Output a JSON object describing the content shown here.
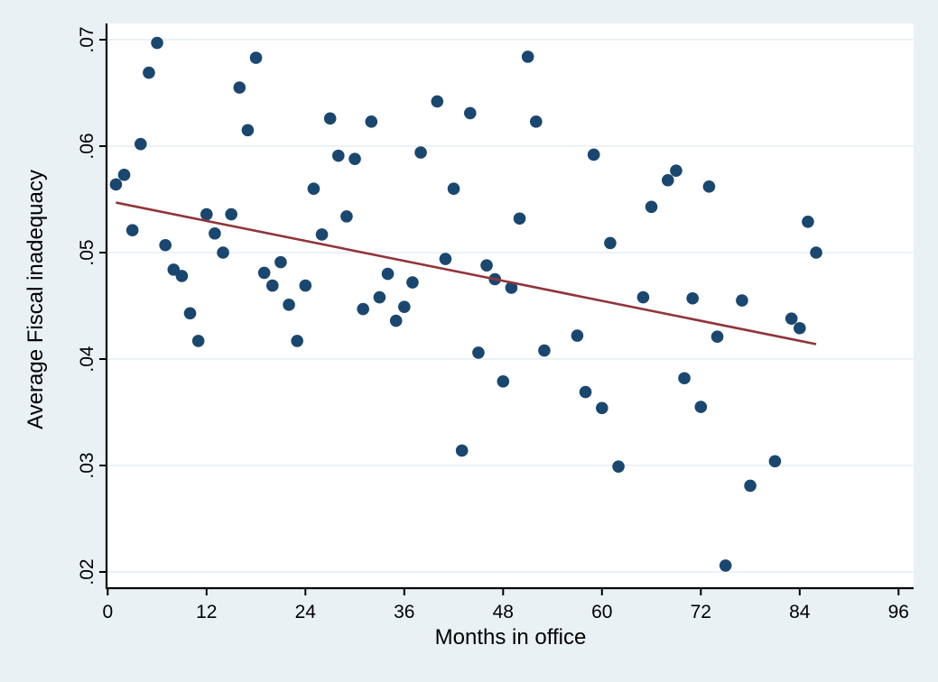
{
  "chart_data": {
    "type": "scatter",
    "title": "",
    "xlabel": "Months in office",
    "ylabel": "Average Fiscal inadequacy",
    "x_ticks": [
      0,
      12,
      24,
      36,
      48,
      60,
      72,
      84,
      96
    ],
    "y_tick_values": [
      0.02,
      0.03,
      0.04,
      0.05,
      0.06,
      0.07
    ],
    "y_tick_labels": [
      ".02",
      ".03",
      ".04",
      ".05",
      ".06",
      ".07"
    ],
    "xlim": [
      0,
      97.8
    ],
    "ylim": [
      0.0185,
      0.0709
    ],
    "grid": "horizontal",
    "legend": "none",
    "marker_color": "#1a476f",
    "trend_line": {
      "type": "linear-fit",
      "color": "#90353b",
      "x_start": 1,
      "y_start": 0.0547,
      "x_end": 86,
      "y_end": 0.0414
    },
    "points": [
      [
        1,
        0.0564
      ],
      [
        2,
        0.0573
      ],
      [
        3,
        0.0521
      ],
      [
        4,
        0.0602
      ],
      [
        5,
        0.0669
      ],
      [
        6,
        0.0697
      ],
      [
        7,
        0.0507
      ],
      [
        8,
        0.0484
      ],
      [
        9,
        0.0478
      ],
      [
        10,
        0.0443
      ],
      [
        11,
        0.0417
      ],
      [
        12,
        0.0536
      ],
      [
        13,
        0.0518
      ],
      [
        14,
        0.05
      ],
      [
        15,
        0.0536
      ],
      [
        16,
        0.0655
      ],
      [
        17,
        0.0615
      ],
      [
        18,
        0.0683
      ],
      [
        19,
        0.0481
      ],
      [
        20,
        0.0469
      ],
      [
        21,
        0.0491
      ],
      [
        22,
        0.0451
      ],
      [
        23,
        0.0417
      ],
      [
        24,
        0.0469
      ],
      [
        25,
        0.056
      ],
      [
        26,
        0.0517
      ],
      [
        27,
        0.0626
      ],
      [
        28,
        0.0591
      ],
      [
        29,
        0.0534
      ],
      [
        30,
        0.0588
      ],
      [
        31,
        0.0447
      ],
      [
        32,
        0.0623
      ],
      [
        33,
        0.0458
      ],
      [
        34,
        0.048
      ],
      [
        35,
        0.0436
      ],
      [
        36,
        0.0449
      ],
      [
        37,
        0.0472
      ],
      [
        38,
        0.0594
      ],
      [
        40,
        0.0642
      ],
      [
        41,
        0.0494
      ],
      [
        42,
        0.056
      ],
      [
        43,
        0.0314
      ],
      [
        44,
        0.0631
      ],
      [
        45,
        0.0406
      ],
      [
        46,
        0.0488
      ],
      [
        47,
        0.0475
      ],
      [
        48,
        0.0379
      ],
      [
        49,
        0.0467
      ],
      [
        50,
        0.0532
      ],
      [
        51,
        0.0684
      ],
      [
        52,
        0.0623
      ],
      [
        53,
        0.0408
      ],
      [
        57,
        0.0422
      ],
      [
        58,
        0.0369
      ],
      [
        59,
        0.0592
      ],
      [
        60,
        0.0354
      ],
      [
        61,
        0.0509
      ],
      [
        62,
        0.0299
      ],
      [
        65,
        0.0458
      ],
      [
        66,
        0.0543
      ],
      [
        68,
        0.0568
      ],
      [
        69,
        0.0577
      ],
      [
        70,
        0.0382
      ],
      [
        71,
        0.0457
      ],
      [
        72,
        0.0355
      ],
      [
        73,
        0.0562
      ],
      [
        74,
        0.0421
      ],
      [
        75,
        0.0206
      ],
      [
        77,
        0.0455
      ],
      [
        78,
        0.0281
      ],
      [
        81,
        0.0304
      ],
      [
        83,
        0.0438
      ],
      [
        84,
        0.0429
      ],
      [
        85,
        0.0529
      ],
      [
        86,
        0.05
      ]
    ]
  },
  "colors": {
    "figure_background": "#e9f1f5",
    "plot_background": "#ffffff",
    "gridline": "#e6eef3",
    "axis": "#000000",
    "text": "#000000"
  }
}
